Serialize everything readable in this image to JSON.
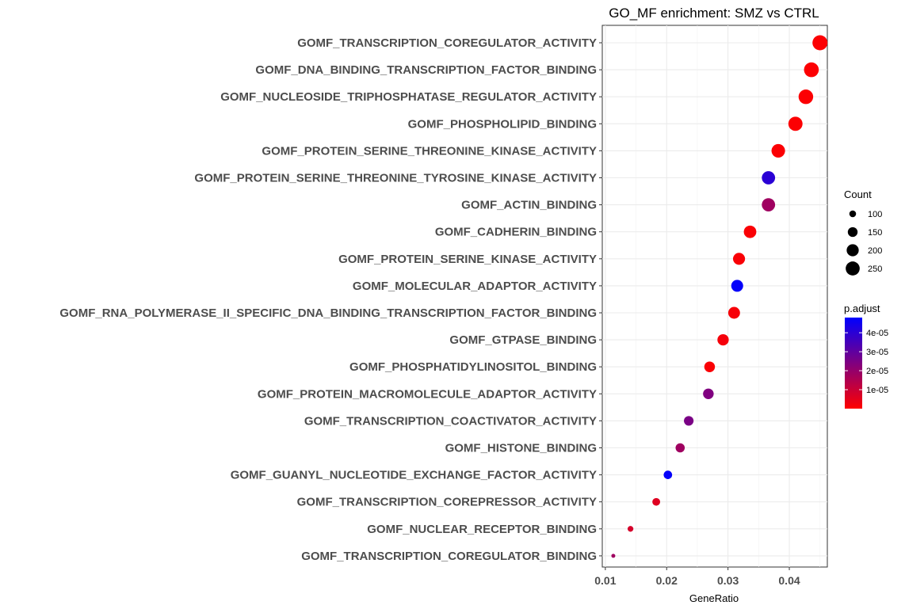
{
  "chart_data": {
    "type": "scatter",
    "title": "GO_MF enrichment: SMZ vs CTRL",
    "xlabel": "GeneRatio",
    "ylabel": "",
    "xlim": [
      0.0095,
      0.0462
    ],
    "x_ticks": [
      0.01,
      0.02,
      0.03,
      0.04
    ],
    "x_tick_labels": [
      "0.01",
      "0.02",
      "0.03",
      "0.04"
    ],
    "grid": true,
    "points": [
      {
        "term": "GOMF_TRANSCRIPTION_COREGULATOR_ACTIVITY",
        "x": 0.045,
        "count": 280,
        "p_adjust": 5e-07
      },
      {
        "term": "GOMF_DNA_BINDING_TRANSCRIPTION_FACTOR_BINDING",
        "x": 0.0436,
        "count": 272,
        "p_adjust": 5e-07
      },
      {
        "term": "GOMF_NUCLEOSIDE_TRIPHOSPHATASE_REGULATOR_ACTIVITY",
        "x": 0.0427,
        "count": 266,
        "p_adjust": 6e-07
      },
      {
        "term": "GOMF_PHOSPHOLIPID_BINDING",
        "x": 0.041,
        "count": 255,
        "p_adjust": 5e-07
      },
      {
        "term": "GOMF_PROTEIN_SERINE_THREONINE_KINASE_ACTIVITY",
        "x": 0.0382,
        "count": 238,
        "p_adjust": 8e-07
      },
      {
        "term": "GOMF_PROTEIN_SERINE_THREONINE_TYROSINE_KINASE_ACTIVITY",
        "x": 0.0366,
        "count": 230,
        "p_adjust": 4e-05
      },
      {
        "term": "GOMF_ACTIN_BINDING",
        "x": 0.0366,
        "count": 230,
        "p_adjust": 1.8e-05
      },
      {
        "term": "GOMF_CADHERIN_BINDING",
        "x": 0.0336,
        "count": 210,
        "p_adjust": 1e-06
      },
      {
        "term": "GOMF_PROTEIN_SERINE_KINASE_ACTIVITY",
        "x": 0.0318,
        "count": 198,
        "p_adjust": 1.2e-06
      },
      {
        "term": "GOMF_MOLECULAR_ADAPTOR_ACTIVITY",
        "x": 0.0315,
        "count": 196,
        "p_adjust": 4.7e-05
      },
      {
        "term": "GOMF_RNA_POLYMERASE_II_SPECIFIC_DNA_BINDING_TRANSCRIPTION_FACTOR_BINDING",
        "x": 0.031,
        "count": 193,
        "p_adjust": 1.5e-06
      },
      {
        "term": "GOMF_GTPASE_BINDING",
        "x": 0.0292,
        "count": 182,
        "p_adjust": 1.8e-06
      },
      {
        "term": "GOMF_PHOSPHATIDYLINOSITOL_BINDING",
        "x": 0.027,
        "count": 168,
        "p_adjust": 1e-06
      },
      {
        "term": "GOMF_PROTEIN_MACROMOLECULE_ADAPTOR_ACTIVITY",
        "x": 0.0268,
        "count": 167,
        "p_adjust": 2.4e-05
      },
      {
        "term": "GOMF_TRANSCRIPTION_COACTIVATOR_ACTIVITY",
        "x": 0.0236,
        "count": 147,
        "p_adjust": 2.5e-05
      },
      {
        "term": "GOMF_HISTONE_BINDING",
        "x": 0.0222,
        "count": 138,
        "p_adjust": 1.8e-05
      },
      {
        "term": "GOMF_GUANYL_NUCLEOTIDE_EXCHANGE_FACTOR_ACTIVITY",
        "x": 0.0202,
        "count": 126,
        "p_adjust": 4.7e-05
      },
      {
        "term": "GOMF_TRANSCRIPTION_COREPRESSOR_ACTIVITY",
        "x": 0.0183,
        "count": 114,
        "p_adjust": 6e-06
      },
      {
        "term": "GOMF_NUCLEAR_RECEPTOR_BINDING",
        "x": 0.0141,
        "count": 88,
        "p_adjust": 8e-06
      },
      {
        "term": "GOMF_TRANSCRIPTION_COREGULATOR_BINDING",
        "x": 0.0113,
        "count": 70,
        "p_adjust": 1.8e-05
      }
    ],
    "size_legend": {
      "title": "Count",
      "values": [
        100,
        150,
        200,
        250
      ],
      "labels": [
        "100",
        "150",
        "200",
        "250"
      ]
    },
    "color_legend": {
      "title": "p.adjust",
      "low_color": "#FF0000",
      "high_color": "#0000FF",
      "range": [
        0.0,
        4.8e-05
      ],
      "ticks": [
        1e-05,
        2e-05,
        3e-05,
        4e-05
      ],
      "tick_labels": [
        "1e-05",
        "2e-05",
        "3e-05",
        "4e-05"
      ]
    }
  }
}
